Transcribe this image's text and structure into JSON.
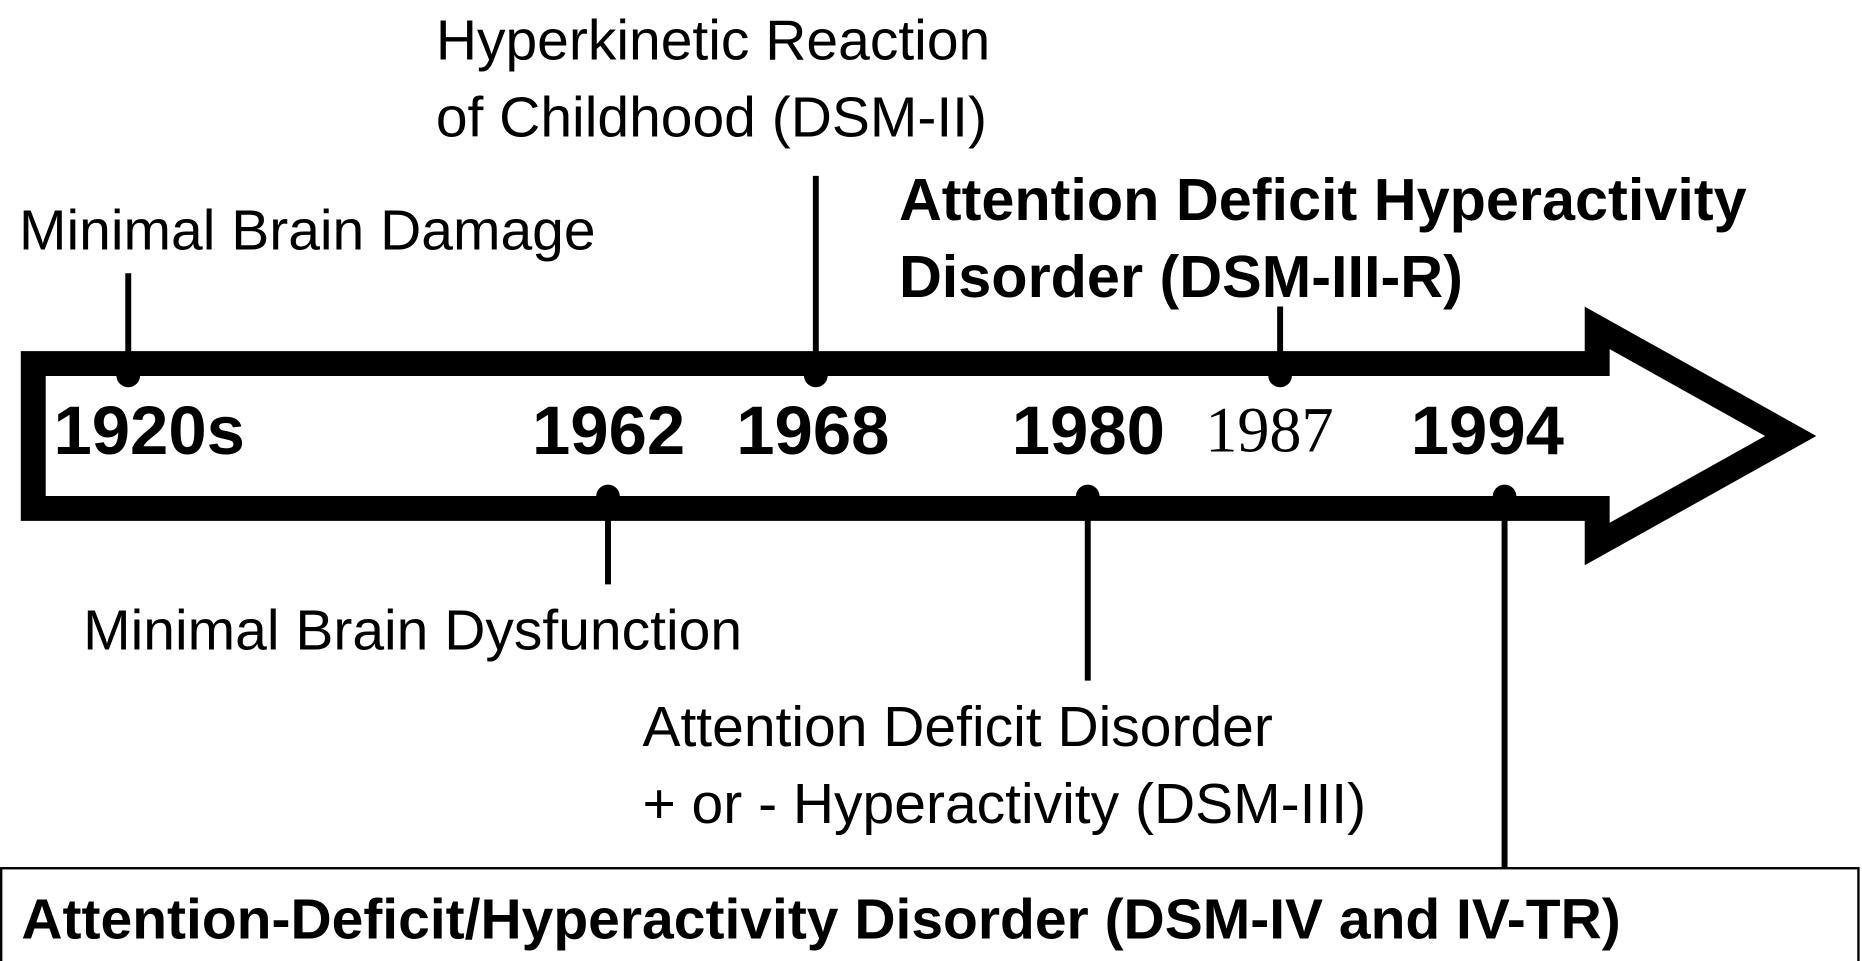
{
  "events": [
    {
      "year": "1920s",
      "label": [
        "Minimal Brain Damage"
      ]
    },
    {
      "year": "1962",
      "label": [
        "Minimal Brain Dysfunction"
      ]
    },
    {
      "year": "1968",
      "label": [
        "Hyperkinetic Reaction",
        "of Childhood (DSM-II)"
      ]
    },
    {
      "year": "1980",
      "label": [
        "Attention Deficit Disorder",
        "+ or - Hyperactivity (DSM-III)"
      ]
    },
    {
      "year": "1987",
      "label": [
        "Attention Deficit Hyperactivity",
        "Disorder (DSM-III-R)"
      ]
    },
    {
      "year": "1994",
      "label": [
        "Attention-Deficit/Hyperactivity Disorder (DSM-IV and IV-TR)"
      ]
    }
  ]
}
